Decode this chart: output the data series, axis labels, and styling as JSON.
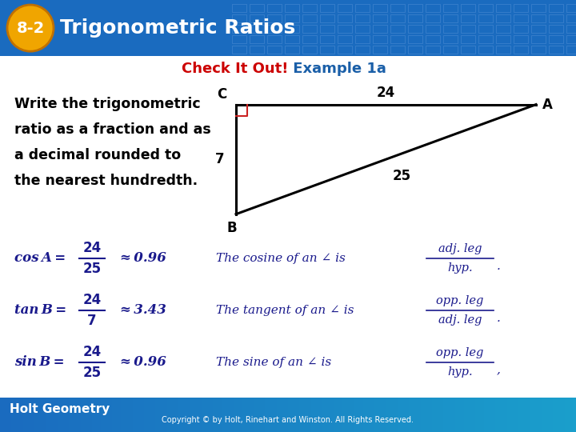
{
  "title": "Trigonometric Ratios",
  "subtitle_red": "Check It Out!",
  "subtitle_blue": " Example 1a",
  "problem_text": [
    "Write the trigonometric",
    "ratio as a fraction and as",
    "a decimal rounded to",
    "the nearest hundredth."
  ],
  "header_bg": "#1a6bbf",
  "header_bg2": "#1a8fcc",
  "badge_color": "#f0a500",
  "badge_text": "8-2",
  "body_bg": "#ffffff",
  "eq_color": "#1a1a8c",
  "note_color": "#1a1a8c",
  "equations": [
    {
      "left": "cos A =",
      "num": "24",
      "den": "25",
      "approx": "≈ 0.96",
      "note_italic": "The cosine of an ∠ is",
      "note_num": "adj. leg",
      "note_den": "hyp.",
      "note_end": "."
    },
    {
      "left": "tan B =",
      "num": "24",
      "den": "7",
      "approx": "≈ 3.43",
      "note_italic": "The tangent of an ∠ is",
      "note_num": "opp. leg",
      "note_den": "adj. leg",
      "note_end": "."
    },
    {
      "left": "sin B =",
      "num": "24",
      "den": "25",
      "approx": "≈ 0.96",
      "note_italic": "The sine of an ∠ is",
      "note_num": "opp. leg",
      "note_den": "hyp.",
      "note_end": ","
    }
  ],
  "footer_text": "Holt Geometry",
  "copyright_text": "Copyright © by Holt, Rinehart and Winston. All Rights Reserved.",
  "footer_bg": "#1a6bbf",
  "subtitle_red_color": "#cc0000",
  "subtitle_blue_color": "#1a5fa8",
  "tile_color": "#3a80cc"
}
